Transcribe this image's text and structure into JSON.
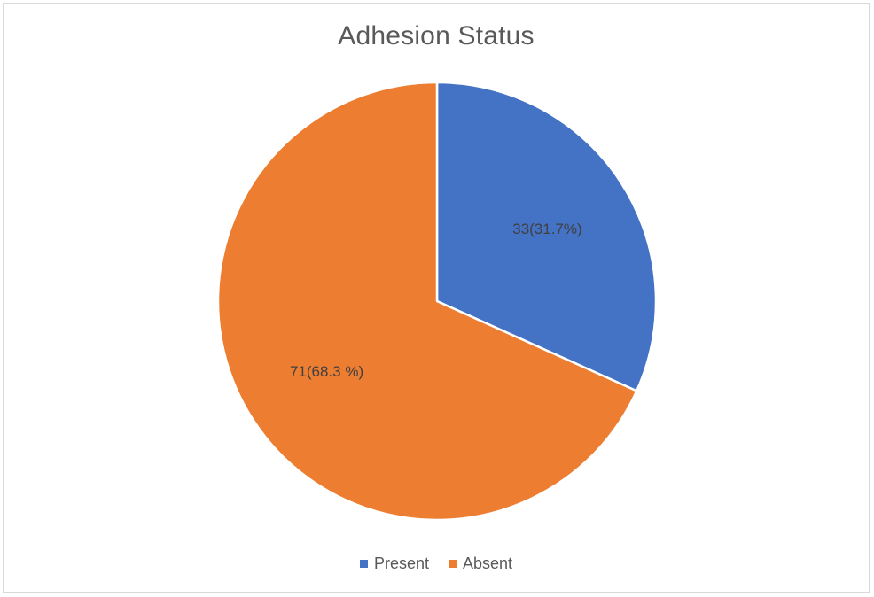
{
  "chart_data": {
    "type": "pie",
    "title": "Adhesion Status",
    "slices": [
      {
        "name": "Present",
        "value": 33,
        "label": "33(31.7%)",
        "color": "#4472C4"
      },
      {
        "name": "Absent",
        "value": 71,
        "label": "71(68.3 %)",
        "color": "#ED7D31"
      }
    ],
    "legend_position": "bottom",
    "start_angle": "12 o'clock",
    "direction": "clockwise"
  }
}
